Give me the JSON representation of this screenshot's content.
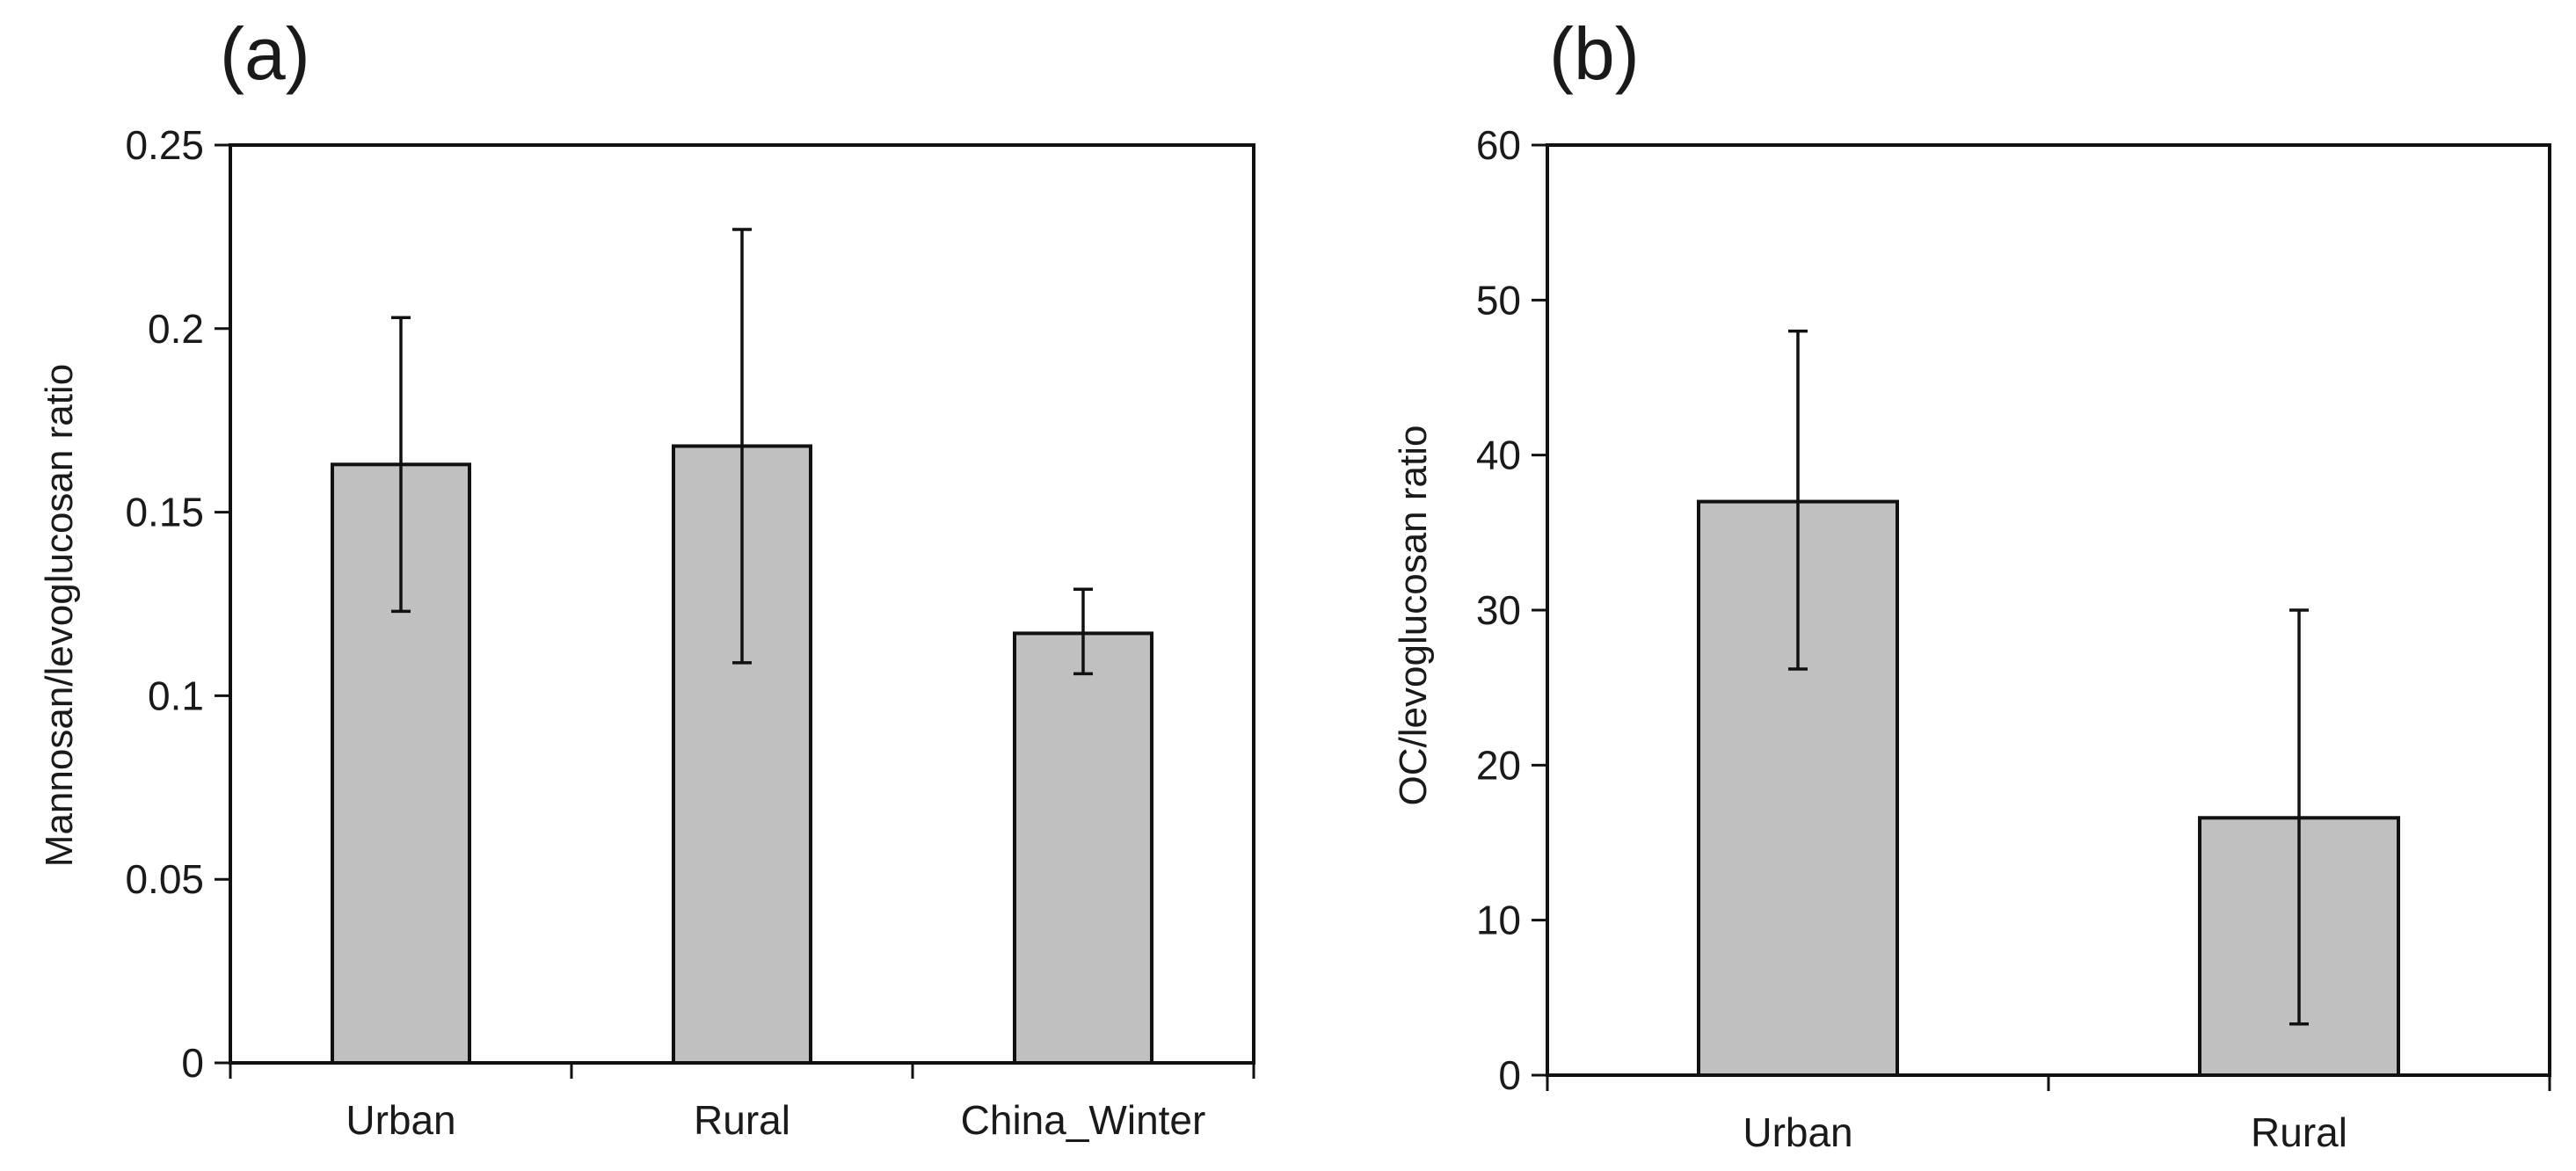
{
  "chart_data": [
    {
      "panel_label": "(a)",
      "type": "bar",
      "categories": [
        "Urban",
        "Rural",
        "China_Winter"
      ],
      "values": [
        0.163,
        0.168,
        0.117
      ],
      "error_upper": [
        0.203,
        0.227,
        0.129
      ],
      "error_lower": [
        0.123,
        0.109,
        0.106
      ],
      "ylabel": "Mannosan/levoglucosan ratio",
      "xlabel": "",
      "ylim": [
        0,
        0.25
      ],
      "yticks": [
        "0",
        "0.05",
        "0.1",
        "0.15",
        "0.2",
        "0.25"
      ],
      "ytick_values": [
        0,
        0.05,
        0.1,
        0.15,
        0.2,
        0.25
      ],
      "grid": false,
      "bar_color": "#c0c0c0"
    },
    {
      "panel_label": "(b)",
      "type": "bar",
      "categories": [
        "Urban",
        "Rural"
      ],
      "values": [
        37,
        16.6
      ],
      "error_upper": [
        48,
        30
      ],
      "error_lower": [
        26.2,
        3.3
      ],
      "ylabel": "OC/levoglucosan ratio",
      "xlabel": "",
      "ylim": [
        0,
        60
      ],
      "yticks": [
        "0",
        "10",
        "20",
        "30",
        "40",
        "50",
        "60"
      ],
      "ytick_values": [
        0,
        10,
        20,
        30,
        40,
        50,
        60
      ],
      "grid": false,
      "bar_color": "#c0c0c0"
    }
  ]
}
